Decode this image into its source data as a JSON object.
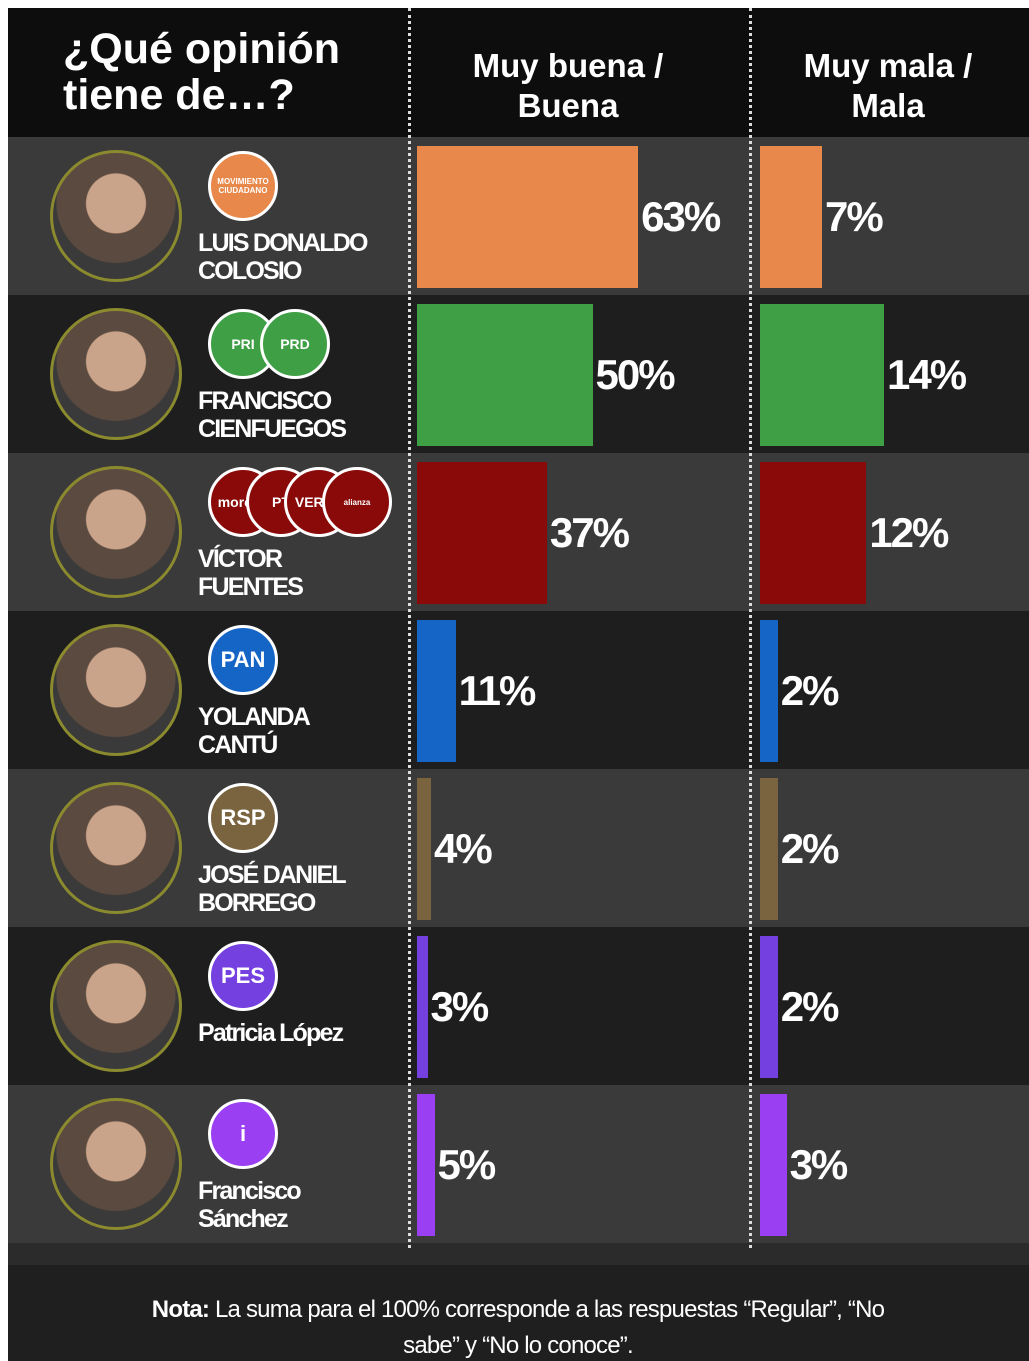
{
  "chart_data": {
    "type": "bar",
    "title": "¿Qué opinión tiene de…?",
    "categories": [
      "LUIS DONALDO COLOSIO",
      "FRANCISCO CIENFUEGOS",
      "VÍCTOR FUENTES",
      "YOLANDA CANTÚ",
      "JOSÉ DANIEL BORREGO",
      "Patricia López",
      "Francisco Sánchez"
    ],
    "colors": [
      "#e8884a",
      "#3f9f45",
      "#8a0a0a",
      "#1565c6",
      "#7a6440",
      "#7440e0",
      "#9a3ff2"
    ],
    "series": [
      {
        "name": "Muy buena / Buena",
        "values": [
          63,
          50,
          37,
          11,
          4,
          3,
          5
        ],
        "value_labels": [
          "63%",
          "50%",
          "37%",
          "11%",
          "4%",
          "3%",
          "5%"
        ]
      },
      {
        "name": "Muy mala / Mala",
        "values": [
          7,
          14,
          12,
          2,
          2,
          2,
          3
        ],
        "value_labels": [
          "7%",
          "14%",
          "12%",
          "2%",
          "2%",
          "2%",
          "3%"
        ]
      }
    ]
  },
  "parties": [
    [
      "MOVIMIENTO CIUDADANO"
    ],
    [
      "PRI",
      "PRD"
    ],
    [
      "morena",
      "PT",
      "VERDE",
      "alianza"
    ],
    [
      "PAN"
    ],
    [
      "RSP"
    ],
    [
      "PES"
    ],
    [
      "i"
    ]
  ],
  "note": {
    "label": "Nota:",
    "text": "La suma para el 100% corresponde a las respuestas “Regular”, “No sabe” y “No lo conoce”."
  }
}
